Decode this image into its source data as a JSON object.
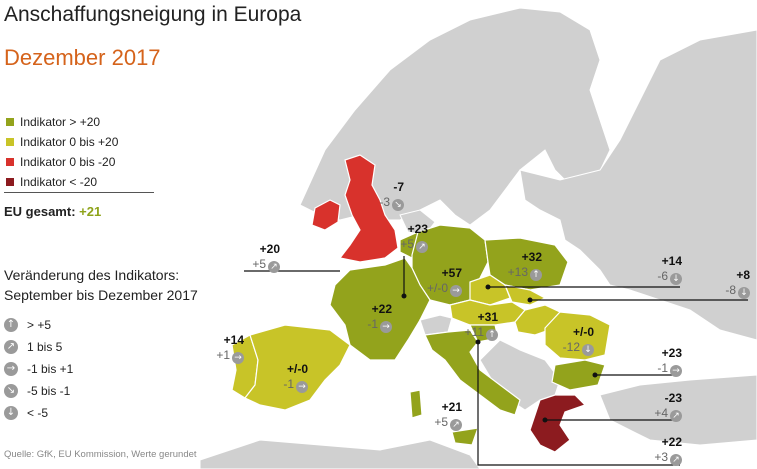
{
  "title": "Anschaffungsneigung in Europa",
  "subtitle": "Dezember 2017",
  "colors": {
    "above20": "#93a31c",
    "zero_to_20": "#c8c428",
    "zero_to_minus20": "#d8322c",
    "below_minus20": "#8c1b1f",
    "other_land": "#d0d0d0",
    "sea": "#ffffff",
    "accent": "#d5631b"
  },
  "legend": [
    {
      "label": "Indikator > +20",
      "color": "#93a31c"
    },
    {
      "label": "Indikator 0 bis +20",
      "color": "#c8c428"
    },
    {
      "label": "Indikator 0 bis -20",
      "color": "#d8322c"
    },
    {
      "label": "Indikator < -20",
      "color": "#8c1b1f"
    }
  ],
  "eu_total": {
    "label": "EU gesamt:",
    "value": "+21"
  },
  "change_title_line1": "Veränderung des Indikators:",
  "change_title_line2": "September bis Dezember 2017",
  "change_legend": [
    {
      "icon": "arrow-up-icon",
      "label": "> +5"
    },
    {
      "icon": "arrow-up-right-icon",
      "label": "1 bis 5"
    },
    {
      "icon": "arrow-right-icon",
      "label": "-1 bis +1"
    },
    {
      "icon": "arrow-down-right-icon",
      "label": "-5 bis -1"
    },
    {
      "icon": "arrow-down-icon",
      "label": "< -5"
    }
  ],
  "source": "Quelle: GfK, EU Kommission, Werte gerundet",
  "countries": [
    {
      "id": "ie",
      "value": "-7",
      "change": "-3",
      "icon": "arrow-down-right-icon"
    },
    {
      "id": "uk",
      "value": "+20",
      "change": "+5",
      "icon": "arrow-up-right-icon"
    },
    {
      "id": "nl",
      "value": "+23",
      "change": "+5",
      "icon": "arrow-up-right-icon"
    },
    {
      "id": "de",
      "value": "+57",
      "change": "+/-0",
      "icon": "arrow-right-icon"
    },
    {
      "id": "pl",
      "value": "+32",
      "change": "+13",
      "icon": "arrow-up-icon"
    },
    {
      "id": "cz",
      "value": "+14",
      "change": "-6",
      "icon": "arrow-down-icon"
    },
    {
      "id": "sk",
      "value": "+8",
      "change": "-8",
      "icon": "arrow-down-icon"
    },
    {
      "id": "fr",
      "value": "+22",
      "change": "-1",
      "icon": "arrow-right-icon"
    },
    {
      "id": "at",
      "value": "+31",
      "change": "+11",
      "icon": "arrow-up-icon"
    },
    {
      "id": "pt",
      "value": "+14",
      "change": "+1",
      "icon": "arrow-right-icon"
    },
    {
      "id": "es",
      "value": "+/-0",
      "change": "-1",
      "icon": "arrow-right-icon"
    },
    {
      "id": "ro",
      "value": "+/-0",
      "change": "-12",
      "icon": "arrow-down-icon"
    },
    {
      "id": "bg",
      "value": "+23",
      "change": "-1",
      "icon": "arrow-right-icon"
    },
    {
      "id": "it",
      "value": "+21",
      "change": "+5",
      "icon": "arrow-up-right-icon"
    },
    {
      "id": "gr",
      "value": "-23",
      "change": "+4",
      "icon": "arrow-up-right-icon"
    },
    {
      "id": "si",
      "value": "+22",
      "change": "+3",
      "icon": "arrow-up-right-icon"
    }
  ]
}
